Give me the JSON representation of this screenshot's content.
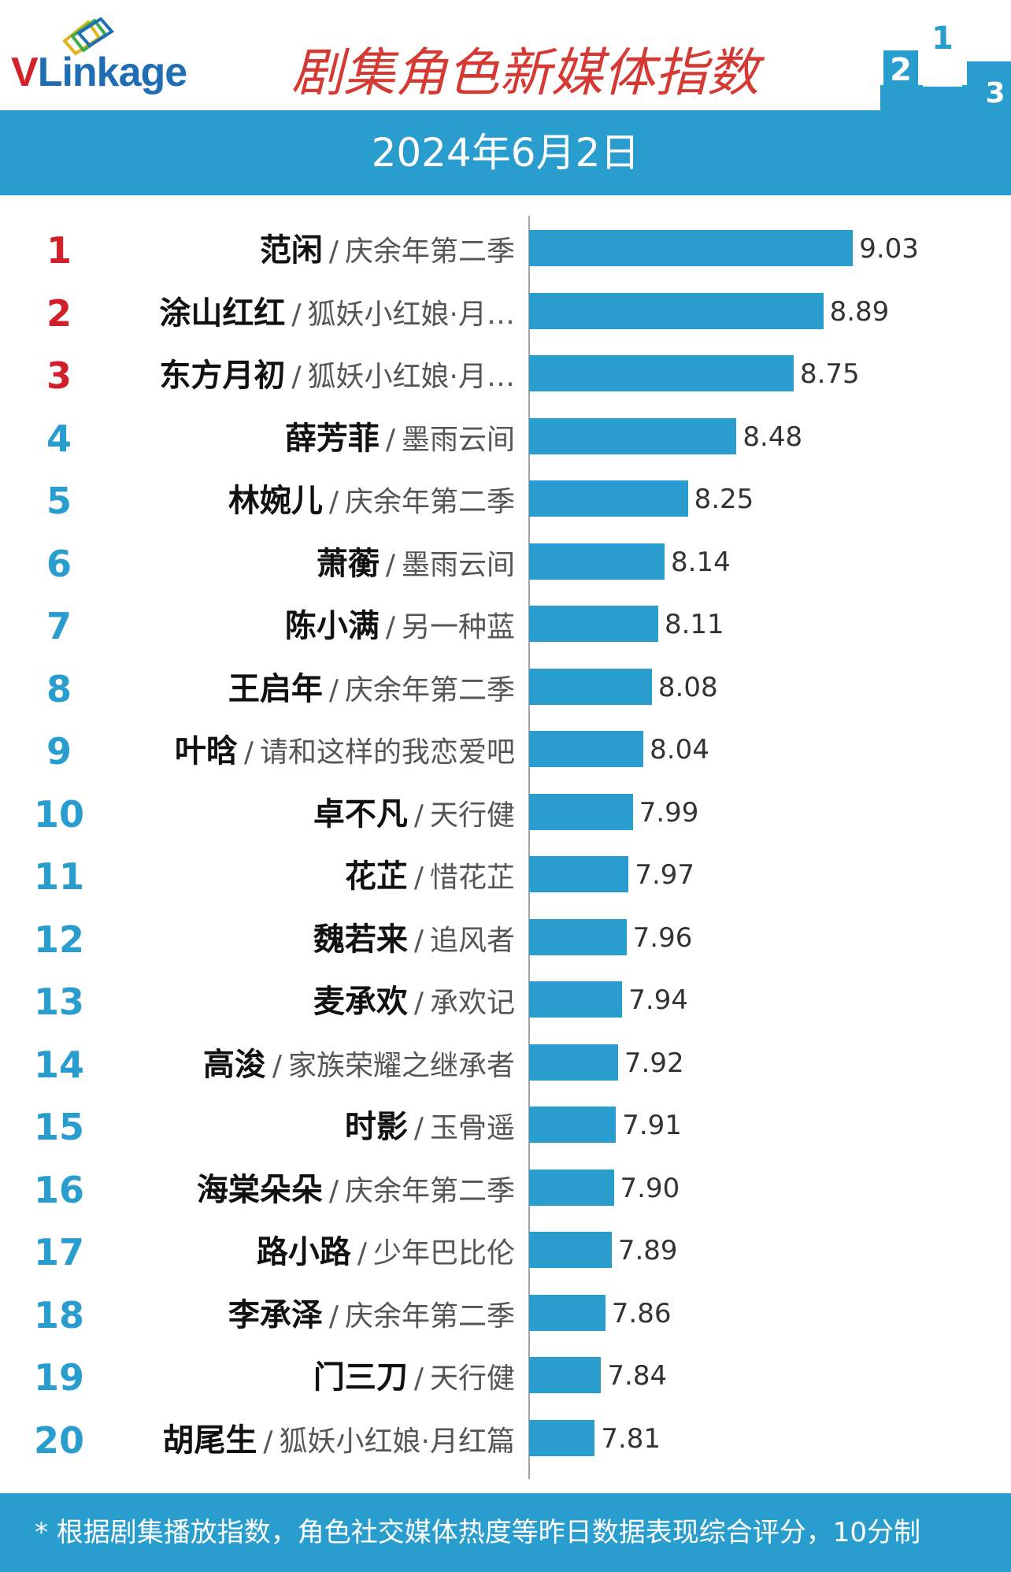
{
  "header": {
    "logo_v": "V",
    "logo_rest": "Linkage",
    "title": "剧集角色新媒体指数",
    "podium_labels": [
      "2",
      "1",
      "3"
    ]
  },
  "date": "2024年6月2日",
  "footer": {
    "note": "* 根据剧集播放指数，角色社交媒体热度等昨日数据表现综合评分，10分制"
  },
  "colors": {
    "bar": "#2a9dcf",
    "top_rank": "#d0202a",
    "rank": "#2a9dcf",
    "title": "#d43a33"
  },
  "chart_data": {
    "type": "bar",
    "orientation": "horizontal",
    "xlim": [
      7.5,
      9.1
    ],
    "ranks": [
      1,
      2,
      3,
      4,
      5,
      6,
      7,
      8,
      9,
      10,
      11,
      12,
      13,
      14,
      15,
      16,
      17,
      18,
      19,
      20
    ],
    "categories": [
      "范闲",
      "涂山红红",
      "东方月初",
      "薛芳菲",
      "林婉儿",
      "萧蘅",
      "陈小满",
      "王启年",
      "叶晗",
      "卓不凡",
      "花芷",
      "魏若来",
      "麦承欢",
      "高浚",
      "时影",
      "海棠朵朵",
      "路小路",
      "李承泽",
      "门三刀",
      "胡尾生"
    ],
    "shows": [
      "庆余年第二季",
      "狐妖小红娘·月…",
      "狐妖小红娘·月…",
      "墨雨云间",
      "庆余年第二季",
      "墨雨云间",
      "另一种蓝",
      "庆余年第二季",
      "请和这样的我恋爱吧",
      "天行健",
      "惜花芷",
      "追风者",
      "承欢记",
      "家族荣耀之继承者",
      "玉骨遥",
      "庆余年第二季",
      "少年巴比伦",
      "庆余年第二季",
      "天行健",
      "狐妖小红娘·月红篇"
    ],
    "values": [
      9.03,
      8.89,
      8.75,
      8.48,
      8.25,
      8.14,
      8.11,
      8.08,
      8.04,
      7.99,
      7.97,
      7.96,
      7.94,
      7.92,
      7.91,
      7.9,
      7.89,
      7.86,
      7.84,
      7.81
    ],
    "value_labels": [
      "9.03",
      "8.89",
      "8.75",
      "8.48",
      "8.25",
      "8.14",
      "8.11",
      "8.08",
      "8.04",
      "7.99",
      "7.97",
      "7.96",
      "7.94",
      "7.92",
      "7.91",
      "7.90",
      "7.89",
      "7.86",
      "7.84",
      "7.81"
    ]
  }
}
